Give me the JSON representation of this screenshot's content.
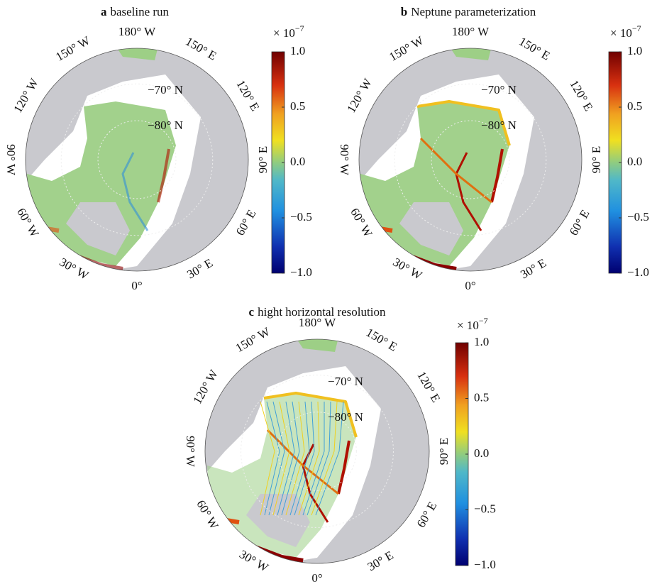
{
  "panels": [
    {
      "label": "a",
      "title": "baseline run",
      "lon_labels": [
        {
          "value": 180,
          "label": "180° W"
        },
        {
          "value": 150,
          "label": "150° E"
        },
        {
          "value": 120,
          "label": "120° E"
        },
        {
          "value": 90,
          "label": "90° E"
        },
        {
          "value": 60,
          "label": "60° E"
        },
        {
          "value": 30,
          "label": "30° E"
        },
        {
          "value": 0,
          "label": "0°"
        },
        {
          "value": -30,
          "label": "30° W"
        },
        {
          "value": -60,
          "label": "60° W"
        },
        {
          "value": -90,
          "label": "90° W"
        },
        {
          "value": -120,
          "label": "120° W"
        },
        {
          "value": -150,
          "label": "150° W"
        }
      ],
      "lat_labels": [
        "−70° N",
        "−80° N"
      ],
      "colorbar": {
        "exponent": {
          "base": "× 10",
          "power": "−7"
        },
        "lim": [
          -1,
          1
        ],
        "ticks": [
          {
            "value": 1,
            "label": "1.0"
          },
          0.5,
          {
            "value": 0,
            "label": "0.0"
          },
          {
            "value": -0.5,
            "label": "−0.5"
          },
          {
            "value": -1,
            "label": "−1.0"
          }
        ]
      }
    },
    {
      "label": "b",
      "title": "Neptune parameterization",
      "lon_labels": [
        {
          "value": 180,
          "label": "180° W"
        },
        {
          "value": 150,
          "label": "150° E"
        },
        {
          "value": 120,
          "label": "120° E"
        },
        {
          "value": 90,
          "label": "90° E"
        },
        {
          "value": 60,
          "label": "60° E"
        },
        {
          "value": 30,
          "label": "30° E"
        },
        {
          "value": 0,
          "label": "0°"
        },
        {
          "value": -30,
          "label": "30° W"
        },
        {
          "value": -60,
          "label": "60° W"
        },
        {
          "value": -90,
          "label": "90° W"
        },
        {
          "value": -120,
          "label": "120° W"
        },
        {
          "value": -150,
          "label": "150° W"
        }
      ],
      "lat_labels": [
        "−70° N",
        "−80° N"
      ],
      "colorbar": {
        "exponent": {
          "base": "× 10",
          "power": "−7"
        },
        "lim": [
          -1,
          1
        ],
        "ticks": [
          {
            "value": 1,
            "label": "1.0"
          },
          0.5,
          {
            "value": 0,
            "label": "0.0"
          },
          {
            "value": -0.5,
            "label": "−0.5"
          },
          {
            "value": -1,
            "label": "−1.0"
          }
        ]
      }
    },
    {
      "label": "c",
      "title": "hight horizontal resolution",
      "lon_labels": [
        {
          "value": 180,
          "label": "180° W"
        },
        {
          "value": 150,
          "label": "150° E"
        },
        {
          "value": 120,
          "label": "120° E"
        },
        {
          "value": 90,
          "label": "90° E"
        },
        {
          "value": 60,
          "label": "60° E"
        },
        {
          "value": 30,
          "label": "30° E"
        },
        {
          "value": 0,
          "label": "0°"
        },
        {
          "value": -30,
          "label": "30° W"
        },
        {
          "value": -60,
          "label": "60° W"
        },
        {
          "value": -90,
          "label": "90° W"
        },
        {
          "value": -120,
          "label": "120° W"
        },
        {
          "value": -150,
          "label": "150° W"
        }
      ],
      "lat_labels": [
        "−70° N",
        "−80° N"
      ],
      "colorbar": {
        "exponent": {
          "base": "× 10",
          "power": "−7"
        },
        "lim": [
          -1,
          1
        ],
        "ticks": [
          {
            "value": 1,
            "label": "1.0"
          },
          0.5,
          {
            "value": 0,
            "label": "0.0"
          },
          {
            "value": -0.5,
            "label": "−0.5"
          },
          {
            "value": -1,
            "label": "−1.0"
          }
        ]
      }
    }
  ]
}
